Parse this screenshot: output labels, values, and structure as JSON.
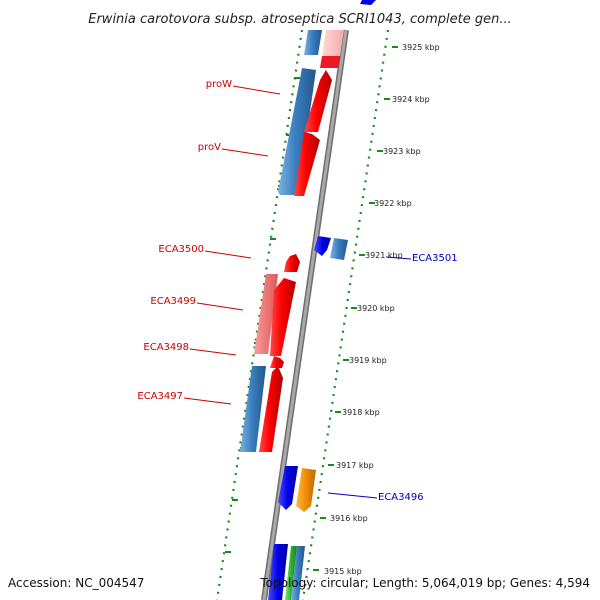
{
  "title": "Erwinia carotovora subsp. atroseptica SCRI1043, complete gen...",
  "footer": {
    "accession": "Accession: NC_004547",
    "summary": "Topology: circular; Length: 5,064,019 bp; Genes: 4,594"
  },
  "colors": {
    "forward_gene": "#e8000b",
    "forward_gene_light": "#f08080",
    "reverse_gene": "#3a7fc1",
    "reverse_gene_dark": "#0000e6",
    "orange_gene": "#f08c00",
    "green_gene": "#2db42d",
    "backbone": "#8a8a8a",
    "tick": "#1a8a1a",
    "label_red": "#cc0000",
    "label_blue": "#0000bb"
  },
  "ticks": [
    {
      "label": "3925 kbp"
    },
    {
      "label": "3924 kbp"
    },
    {
      "label": "3923 kbp"
    },
    {
      "label": "3922 kbp"
    },
    {
      "label": "3921 kbp"
    },
    {
      "label": "3920 kbp"
    },
    {
      "label": "3919 kbp"
    },
    {
      "label": "3918 kbp"
    },
    {
      "label": "3917 kbp"
    },
    {
      "label": "3916 kbp"
    },
    {
      "label": "3915 kbp"
    }
  ],
  "gene_labels": [
    {
      "text": "proW",
      "color": "red"
    },
    {
      "text": "proV",
      "color": "red"
    },
    {
      "text": "ECA3500",
      "color": "red"
    },
    {
      "text": "ECA3499",
      "color": "red"
    },
    {
      "text": "ECA3498",
      "color": "red"
    },
    {
      "text": "ECA3497",
      "color": "red"
    },
    {
      "text": "ECA3501",
      "color": "blue"
    },
    {
      "text": "ECA3496",
      "color": "blue"
    }
  ]
}
